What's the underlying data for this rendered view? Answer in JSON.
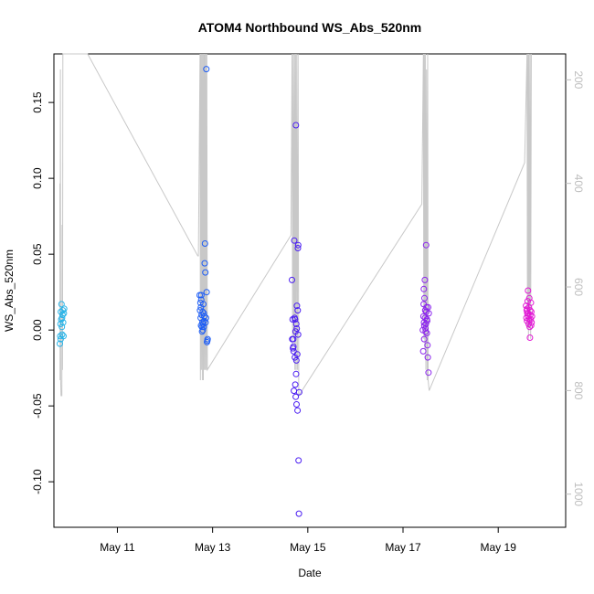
{
  "chart_data": {
    "type": "scatter",
    "title": "ATOM4 Northbound WS_Abs_520nm",
    "xlabel": "Date",
    "ylabel": "WS_Abs_520nm",
    "x_ticks": [
      "May 11",
      "May 13",
      "May 15",
      "May 17",
      "May 19"
    ],
    "y_ticks": [
      "-0.10",
      "-0.05",
      "0.00",
      "0.05",
      "0.10",
      "0.15"
    ],
    "y_right_ticks": [
      "200",
      "400",
      "600",
      "800",
      "1000"
    ],
    "xlim": [
      "2024-05-09T16:00",
      "2024-05-20T10:00"
    ],
    "ylim": [
      -0.13,
      0.182
    ],
    "y_right_lim": [
      1064,
      150
    ],
    "grid": false,
    "colors": {
      "day1": "#29b4e8",
      "day2": "#1f5ef5",
      "day3": "#4b1ef2",
      "day4": "#8c25ee",
      "day5": "#e21bd5",
      "trace": "#c8c8c8",
      "right_axis": "#bdbdbd"
    },
    "series": [
      {
        "color": "#29b4e8",
        "points": [
          [
            "2024-05-09T19:00",
            -0.009
          ],
          [
            "2024-05-09T19:10",
            -0.004
          ],
          [
            "2024-05-09T19:20",
            0.004
          ],
          [
            "2024-05-09T19:30",
            0.012
          ],
          [
            "2024-05-09T19:40",
            0.007
          ],
          [
            "2024-05-09T19:50",
            0.017
          ],
          [
            "2024-05-09T20:00",
            0.002
          ],
          [
            "2024-05-09T20:10",
            -0.003
          ],
          [
            "2024-05-09T20:20",
            0.01
          ],
          [
            "2024-05-09T20:30",
            0.013
          ],
          [
            "2024-05-09T20:40",
            0.005
          ],
          [
            "2024-05-09T20:50",
            -0.004
          ],
          [
            "2024-05-09T21:00",
            0.011
          ],
          [
            "2024-05-09T21:10",
            0.014
          ],
          [
            "2024-05-09T19:25",
            -0.006
          ],
          [
            "2024-05-09T20:05",
            0.008
          ]
        ]
      },
      {
        "color": "#1f5ef5",
        "points": [
          [
            "2024-05-12T17:30",
            0.023
          ],
          [
            "2024-05-12T17:40",
            0.013
          ],
          [
            "2024-05-12T17:50",
            0.018
          ],
          [
            "2024-05-12T18:00",
            0.008
          ],
          [
            "2024-05-12T18:10",
            0.003
          ],
          [
            "2024-05-12T18:20",
            0.023
          ],
          [
            "2024-05-12T18:30",
            0.01
          ],
          [
            "2024-05-12T18:40",
            -0.001
          ],
          [
            "2024-05-12T18:50",
            0.005
          ],
          [
            "2024-05-12T19:00",
            0.012
          ],
          [
            "2024-05-12T19:10",
            0.004
          ],
          [
            "2024-05-12T19:20",
            0.017
          ],
          [
            "2024-05-12T19:30",
            0.002
          ],
          [
            "2024-05-12T19:40",
            0.006
          ],
          [
            "2024-05-12T19:50",
            0.009
          ],
          [
            "2024-05-12T20:00",
            0.044
          ],
          [
            "2024-05-12T20:10",
            0.057
          ],
          [
            "2024-05-12T20:20",
            0.038
          ],
          [
            "2024-05-12T20:30",
            0.005
          ],
          [
            "2024-05-12T20:40",
            0.008
          ],
          [
            "2024-05-12T20:50",
            0.172
          ],
          [
            "2024-05-12T21:00",
            0.025
          ],
          [
            "2024-05-12T21:10",
            -0.008
          ],
          [
            "2024-05-12T21:20",
            -0.007
          ],
          [
            "2024-05-12T21:30",
            -0.006
          ],
          [
            "2024-05-12T18:05",
            0.015
          ],
          [
            "2024-05-12T18:35",
            0.002
          ],
          [
            "2024-05-12T19:05",
            0.0
          ],
          [
            "2024-05-12T19:35",
            0.011
          ],
          [
            "2024-05-12T18:15",
            0.02
          ]
        ]
      },
      {
        "color": "#4b1ef2",
        "points": [
          [
            "2024-05-14T16:00",
            0.033
          ],
          [
            "2024-05-14T16:10",
            -0.006
          ],
          [
            "2024-05-14T16:20",
            0.007
          ],
          [
            "2024-05-14T16:30",
            -0.012
          ],
          [
            "2024-05-14T16:40",
            -0.006
          ],
          [
            "2024-05-14T16:50",
            -0.014
          ],
          [
            "2024-05-14T17:00",
            -0.04
          ],
          [
            "2024-05-14T17:10",
            0.059
          ],
          [
            "2024-05-14T17:20",
            0.008
          ],
          [
            "2024-05-14T17:30",
            -0.018
          ],
          [
            "2024-05-14T17:40",
            -0.036
          ],
          [
            "2024-05-14T17:50",
            -0.001
          ],
          [
            "2024-05-14T18:00",
            0.135
          ],
          [
            "2024-05-14T18:10",
            0.004
          ],
          [
            "2024-05-14T18:20",
            -0.049
          ],
          [
            "2024-05-14T18:30",
            0.016
          ],
          [
            "2024-05-14T18:40",
            -0.016
          ],
          [
            "2024-05-14T18:50",
            -0.053
          ],
          [
            "2024-05-14T19:00",
            0.054
          ],
          [
            "2024-05-14T19:10",
            0.056
          ],
          [
            "2024-05-14T19:20",
            -0.086
          ],
          [
            "2024-05-14T19:30",
            -0.121
          ],
          [
            "2024-05-14T19:40",
            -0.041
          ],
          [
            "2024-05-14T18:05",
            -0.029
          ],
          [
            "2024-05-14T18:15",
            -0.02
          ],
          [
            "2024-05-14T18:25",
            0.001
          ],
          [
            "2024-05-14T18:55",
            0.013
          ],
          [
            "2024-05-14T19:05",
            -0.003
          ],
          [
            "2024-05-14T17:35",
            0.007
          ],
          [
            "2024-05-14T17:55",
            -0.044
          ],
          [
            "2024-05-14T16:45",
            -0.011
          ]
        ]
      },
      {
        "color": "#8c25ee",
        "points": [
          [
            "2024-05-17T10:00",
            0.0
          ],
          [
            "2024-05-17T10:10",
            -0.014
          ],
          [
            "2024-05-17T10:20",
            0.009
          ],
          [
            "2024-05-17T10:30",
            0.027
          ],
          [
            "2024-05-17T10:40",
            -0.006
          ],
          [
            "2024-05-17T10:50",
            0.021
          ],
          [
            "2024-05-17T11:00",
            0.033
          ],
          [
            "2024-05-17T11:10",
            0.013
          ],
          [
            "2024-05-17T11:20",
            0.001
          ],
          [
            "2024-05-17T11:30",
            0.004
          ],
          [
            "2024-05-17T11:40",
            0.056
          ],
          [
            "2024-05-17T11:50",
            0.015
          ],
          [
            "2024-05-17T12:00",
            -0.002
          ],
          [
            "2024-05-17T12:10",
            0.006
          ],
          [
            "2024-05-17T12:20",
            -0.01
          ],
          [
            "2024-05-17T12:30",
            -0.018
          ],
          [
            "2024-05-17T12:40",
            0.015
          ],
          [
            "2024-05-17T12:50",
            -0.028
          ],
          [
            "2024-05-17T13:00",
            0.011
          ],
          [
            "2024-05-17T10:35",
            0.005
          ],
          [
            "2024-05-17T10:45",
            0.003
          ],
          [
            "2024-05-17T11:05",
            0.008
          ],
          [
            "2024-05-17T11:25",
            -0.001
          ],
          [
            "2024-05-17T11:45",
            0.012
          ],
          [
            "2024-05-17T12:05",
            0.007
          ],
          [
            "2024-05-17T10:25",
            0.017
          ]
        ]
      },
      {
        "color": "#e21bd5",
        "points": [
          [
            "2024-05-19T14:00",
            0.016
          ],
          [
            "2024-05-19T14:10",
            0.008
          ],
          [
            "2024-05-19T14:20",
            0.013
          ],
          [
            "2024-05-19T14:30",
            0.006
          ],
          [
            "2024-05-19T14:40",
            0.011
          ],
          [
            "2024-05-19T14:50",
            0.019
          ],
          [
            "2024-05-19T15:00",
            0.026
          ],
          [
            "2024-05-19T15:10",
            0.009
          ],
          [
            "2024-05-19T15:20",
            0.004
          ],
          [
            "2024-05-19T15:30",
            0.015
          ],
          [
            "2024-05-19T15:40",
            0.021
          ],
          [
            "2024-05-19T15:50",
            0.002
          ],
          [
            "2024-05-19T16:00",
            -0.005
          ],
          [
            "2024-05-19T16:10",
            0.01
          ],
          [
            "2024-05-19T16:20",
            0.007
          ],
          [
            "2024-05-19T16:30",
            0.018
          ],
          [
            "2024-05-19T16:40",
            0.012
          ],
          [
            "2024-05-19T16:50",
            0.005
          ],
          [
            "2024-05-19T17:00",
            0.009
          ],
          [
            "2024-05-19T14:35",
            0.014
          ],
          [
            "2024-05-19T15:05",
            0.011
          ],
          [
            "2024-05-19T15:35",
            0.007
          ],
          [
            "2024-05-19T16:05",
            0.013
          ],
          [
            "2024-05-19T16:35",
            0.003
          ]
        ]
      }
    ],
    "secondary_trace": {
      "color": "#c8c8c8",
      "points": [
        [
          "2024-05-09T19:00",
          400
        ],
        [
          "2024-05-09T19:05",
          780
        ],
        [
          "2024-05-09T19:15",
          180
        ],
        [
          "2024-05-09T19:25",
          780
        ],
        [
          "2024-05-09T19:35",
          810
        ],
        [
          "2024-05-09T19:45",
          810
        ],
        [
          "2024-05-09T20:00",
          810
        ],
        [
          "2024-05-09T20:10",
          480
        ],
        [
          "2024-05-09T20:20",
          760
        ],
        [
          "2024-05-09T20:30",
          140
        ],
        [
          "2024-05-09T20:40",
          140
        ],
        [
          "2024-05-10T09:00",
          140
        ],
        [
          "2024-05-12T16:30",
          540
        ],
        [
          "2024-05-12T16:50",
          540
        ],
        [
          "2024-05-12T17:40",
          140
        ],
        [
          "2024-05-12T17:50",
          780
        ],
        [
          "2024-05-12T18:05",
          140
        ],
        [
          "2024-05-12T18:20",
          760
        ],
        [
          "2024-05-12T18:35",
          140
        ],
        [
          "2024-05-12T18:50",
          780
        ],
        [
          "2024-05-12T19:05",
          140
        ],
        [
          "2024-05-12T19:20",
          780
        ],
        [
          "2024-05-12T19:35",
          140
        ],
        [
          "2024-05-12T19:50",
          760
        ],
        [
          "2024-05-12T20:05",
          140
        ],
        [
          "2024-05-12T20:20",
          760
        ],
        [
          "2024-05-12T20:35",
          140
        ],
        [
          "2024-05-12T20:50",
          760
        ],
        [
          "2024-05-12T21:05",
          140
        ],
        [
          "2024-05-12T21:20",
          760
        ],
        [
          "2024-05-14T15:30",
          500
        ],
        [
          "2024-05-14T16:05",
          140
        ],
        [
          "2024-05-14T16:20",
          720
        ],
        [
          "2024-05-14T16:40",
          140
        ],
        [
          "2024-05-14T16:55",
          700
        ],
        [
          "2024-05-14T17:15",
          140
        ],
        [
          "2024-05-14T17:30",
          760
        ],
        [
          "2024-05-14T17:50",
          140
        ],
        [
          "2024-05-14T18:05",
          760
        ],
        [
          "2024-05-14T18:25",
          140
        ],
        [
          "2024-05-14T18:45",
          760
        ],
        [
          "2024-05-14T19:05",
          140
        ],
        [
          "2024-05-14T19:25",
          810
        ],
        [
          "2024-05-17T09:30",
          440
        ],
        [
          "2024-05-17T10:15",
          140
        ],
        [
          "2024-05-17T10:30",
          700
        ],
        [
          "2024-05-17T10:45",
          140
        ],
        [
          "2024-05-17T11:00",
          720
        ],
        [
          "2024-05-17T11:15",
          140
        ],
        [
          "2024-05-17T11:30",
          760
        ],
        [
          "2024-05-17T11:50",
          180
        ],
        [
          "2024-05-17T12:10",
          780
        ],
        [
          "2024-05-17T12:25",
          140
        ],
        [
          "2024-05-17T12:40",
          780
        ],
        [
          "2024-05-17T13:10",
          800
        ],
        [
          "2024-05-19T13:20",
          360
        ],
        [
          "2024-05-19T14:30",
          140
        ],
        [
          "2024-05-19T14:45",
          680
        ],
        [
          "2024-05-19T15:00",
          140
        ],
        [
          "2024-05-19T15:15",
          700
        ],
        [
          "2024-05-19T15:30",
          140
        ],
        [
          "2024-05-19T15:45",
          680
        ],
        [
          "2024-05-19T16:05",
          140
        ],
        [
          "2024-05-19T16:20",
          700
        ],
        [
          "2024-05-19T16:40",
          140
        ]
      ]
    }
  }
}
